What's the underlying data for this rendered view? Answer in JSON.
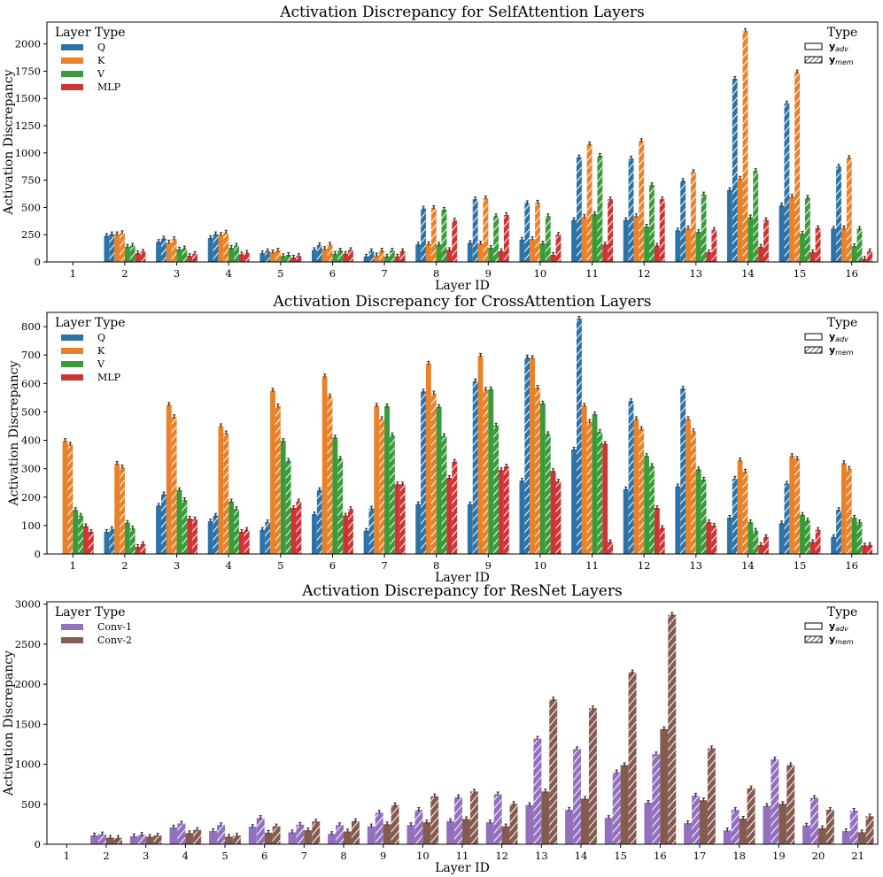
{
  "figure": {
    "ylabel": "Activation Discrepancy",
    "xlabel": "Layer ID"
  },
  "legend_labels": {
    "layer_type_title": "Layer Type",
    "type_title": "Type",
    "adv": "y",
    "adv_sub": "adv",
    "mem": "y",
    "mem_sub": "mem"
  },
  "colors": {
    "Q": "#2d73a8",
    "K": "#e8822a",
    "V": "#3a9b3a",
    "MLP": "#cf3434",
    "Conv-1": "#9370bd",
    "Conv-2": "#855a4f"
  },
  "chart_data": [
    {
      "type": "bar",
      "title": "Activation Discrepancy for SelfAttention Layers",
      "xlabel": "Layer ID",
      "ylabel": "Activation Discrepancy",
      "ylim": [
        0,
        2200
      ],
      "yticks": [
        0,
        250,
        500,
        750,
        1000,
        1250,
        1500,
        1750,
        2000
      ],
      "ytick_labels": [
        "0",
        "250",
        "500",
        "750",
        "1000",
        "1250",
        "1500",
        "1750",
        "2000"
      ],
      "categories": [
        "1",
        "2",
        "3",
        "4",
        "5",
        "6",
        "7",
        "8",
        "9",
        "10",
        "11",
        "12",
        "13",
        "14",
        "15",
        "16"
      ],
      "series": [
        {
          "name": "Q",
          "adv": [
            0,
            240,
            185,
            220,
            80,
            110,
            50,
            160,
            175,
            205,
            385,
            385,
            290,
            660,
            520,
            305
          ],
          "mem": [
            0,
            255,
            215,
            255,
            100,
            155,
            100,
            490,
            575,
            540,
            960,
            950,
            745,
            1680,
            1455,
            875
          ]
        },
        {
          "name": "K",
          "adv": [
            0,
            255,
            180,
            250,
            90,
            120,
            60,
            165,
            170,
            210,
            415,
            420,
            310,
            765,
            600,
            310
          ],
          "mem": [
            0,
            265,
            210,
            270,
            105,
            160,
            105,
            495,
            585,
            545,
            1080,
            1110,
            825,
            2120,
            1740,
            955
          ]
        },
        {
          "name": "V",
          "adv": [
            0,
            140,
            115,
            130,
            55,
            75,
            50,
            160,
            130,
            170,
            440,
            325,
            275,
            410,
            260,
            145
          ],
          "mem": [
            0,
            150,
            125,
            150,
            65,
            105,
            105,
            480,
            420,
            420,
            975,
            705,
            620,
            835,
            590,
            305
          ]
        },
        {
          "name": "MLP",
          "adv": [
            0,
            80,
            55,
            70,
            40,
            75,
            50,
            110,
            100,
            65,
            160,
            150,
            90,
            140,
            90,
            30
          ],
          "mem": [
            0,
            95,
            75,
            85,
            55,
            110,
            100,
            380,
            430,
            250,
            575,
            575,
            295,
            385,
            310,
            100
          ]
        }
      ]
    },
    {
      "type": "bar",
      "title": "Activation Discrepancy for CrossAttention Layers",
      "xlabel": "Layer ID",
      "ylabel": "Activation Discrepancy",
      "ylim": [
        0,
        850
      ],
      "yticks": [
        0,
        100,
        200,
        300,
        400,
        500,
        600,
        700,
        800
      ],
      "ytick_labels": [
        "0",
        "100",
        "200",
        "300",
        "400",
        "500",
        "600",
        "700",
        "800"
      ],
      "categories": [
        "1",
        "2",
        "3",
        "4",
        "5",
        "6",
        "7",
        "8",
        "9",
        "10",
        "11",
        "12",
        "13",
        "14",
        "15",
        "16"
      ],
      "series": [
        {
          "name": "Q",
          "adv": [
            0,
            78,
            170,
            115,
            85,
            140,
            82,
            175,
            175,
            258,
            368,
            228,
            238,
            128,
            108,
            60
          ],
          "mem": [
            0,
            88,
            210,
            135,
            112,
            225,
            160,
            572,
            608,
            692,
            828,
            538,
            582,
            265,
            248,
            155
          ]
        },
        {
          "name": "K",
          "adv": [
            398,
            318,
            525,
            450,
            575,
            625,
            522,
            670,
            698,
            690,
            522,
            475,
            475,
            330,
            345,
            320
          ],
          "mem": [
            385,
            305,
            482,
            425,
            520,
            555,
            475,
            565,
            578,
            585,
            465,
            440,
            432,
            290,
            335,
            300
          ]
        },
        {
          "name": "V",
          "adv": [
            155,
            110,
            225,
            185,
            398,
            410,
            520,
            518,
            580,
            530,
            492,
            345,
            298,
            112,
            138,
            128
          ],
          "mem": [
            135,
            90,
            190,
            158,
            328,
            335,
            418,
            415,
            452,
            422,
            430,
            310,
            262,
            82,
            118,
            112
          ]
        },
        {
          "name": "MLP",
          "adv": [
            98,
            25,
            125,
            78,
            162,
            135,
            245,
            268,
            295,
            292,
            388,
            162,
            112,
            32,
            42,
            30
          ],
          "mem": [
            78,
            35,
            122,
            85,
            185,
            158,
            245,
            325,
            308,
            255,
            42,
            92,
            100,
            60,
            85,
            32
          ]
        }
      ]
    },
    {
      "type": "bar",
      "title": "Activation Discrepancy for ResNet Layers",
      "xlabel": "Layer ID",
      "ylabel": "Activation Discrepancy",
      "ylim": [
        0,
        3030
      ],
      "yticks": [
        0,
        500,
        1000,
        1500,
        2000,
        2500,
        3000
      ],
      "ytick_labels": [
        "0",
        "500",
        "1000",
        "1500",
        "2000",
        "2500",
        "3000"
      ],
      "categories": [
        "1",
        "2",
        "3",
        "4",
        "5",
        "6",
        "7",
        "8",
        "9",
        "10",
        "11",
        "12",
        "13",
        "14",
        "15",
        "16",
        "17",
        "18",
        "19",
        "20",
        "21"
      ],
      "series": [
        {
          "name": "Conv-1",
          "adv": [
            0,
            112,
            100,
            210,
            165,
            220,
            150,
            130,
            225,
            240,
            290,
            275,
            490,
            430,
            330,
            520,
            265,
            175,
            480,
            235,
            165
          ],
          "mem": [
            0,
            125,
            120,
            260,
            240,
            330,
            245,
            240,
            395,
            430,
            590,
            625,
            1320,
            1190,
            900,
            1125,
            610,
            430,
            1060,
            580,
            420
          ]
        },
        {
          "name": "Conv-2",
          "adv": [
            0,
            82,
            95,
            140,
            95,
            145,
            175,
            160,
            250,
            275,
            315,
            225,
            660,
            570,
            990,
            1440,
            550,
            320,
            505,
            200,
            150
          ],
          "mem": [
            0,
            80,
            110,
            180,
            110,
            225,
            285,
            290,
            490,
            600,
            660,
            505,
            1810,
            1700,
            2150,
            2870,
            1200,
            700,
            990,
            430,
            350
          ]
        }
      ]
    }
  ]
}
